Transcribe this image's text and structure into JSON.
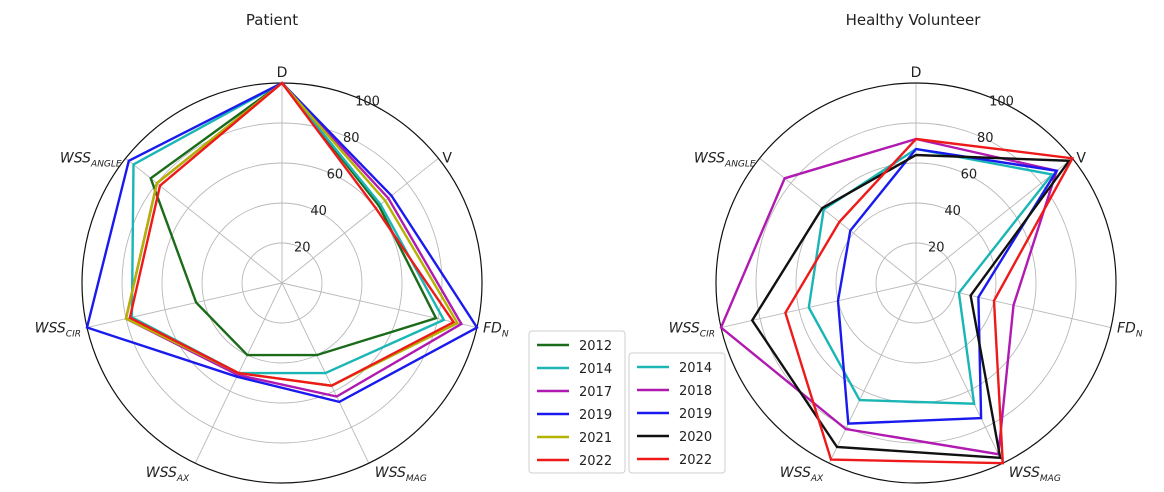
{
  "chart_data": [
    {
      "type": "radar",
      "title": "Patient",
      "axes": [
        "D",
        "V",
        "FD",
        "WSS",
        "WSS",
        "WSS",
        "WSS"
      ],
      "axis_subscripts": [
        "",
        "",
        "N",
        "MAG",
        "AX",
        "CIR",
        "ANGLE"
      ],
      "rlim": [
        0,
        100
      ],
      "r_ticks": [
        20,
        40,
        60,
        80,
        100
      ],
      "grid": true,
      "series": [
        {
          "name": "2012",
          "color": "#1a6b1a",
          "values": [
            100,
            62,
            79,
            40,
            40,
            44,
            84
          ]
        },
        {
          "name": "2014",
          "color": "#1ab5b5",
          "values": [
            100,
            63,
            83,
            50,
            50,
            77,
            95
          ]
        },
        {
          "name": "2017",
          "color": "#b01ab0",
          "values": [
            100,
            68,
            92,
            63,
            51,
            80,
            80
          ]
        },
        {
          "name": "2019",
          "color": "#1a1aee",
          "values": [
            100,
            70,
            100,
            66,
            52,
            100,
            98
          ]
        },
        {
          "name": "2021",
          "color": "#b3b300",
          "values": [
            100,
            66,
            90,
            57,
            50,
            80,
            80
          ]
        },
        {
          "name": "2022",
          "color": "#ee1a1a",
          "values": [
            100,
            60,
            88,
            57,
            50,
            78,
            78
          ]
        }
      ]
    },
    {
      "type": "radar",
      "title": "Healthy Volunteer",
      "axes": [
        "D",
        "V",
        "FD",
        "WSS",
        "WSS",
        "WSS",
        "WSS"
      ],
      "axis_subscripts": [
        "",
        "",
        "N",
        "MAG",
        "AX",
        "CIR",
        "ANGLE"
      ],
      "rlim": [
        0,
        100
      ],
      "r_ticks": [
        20,
        40,
        60,
        80,
        100
      ],
      "grid": true,
      "series": [
        {
          "name": "2014",
          "color": "#1ab5b5",
          "values": [
            67,
            87,
            22,
            67,
            65,
            55,
            59
          ]
        },
        {
          "name": "2018",
          "color": "#b01ab0",
          "values": [
            72,
            90,
            50,
            95,
            81,
            100,
            84
          ]
        },
        {
          "name": "2019",
          "color": "#1a1aee",
          "values": [
            67,
            90,
            32,
            75,
            78,
            40,
            42
          ]
        },
        {
          "name": "2020",
          "color": "#111111",
          "values": [
            64,
            98,
            28,
            97,
            91,
            84,
            60
          ]
        },
        {
          "name": "2022",
          "color": "#ee1a1a",
          "values": [
            72,
            100,
            40,
            100,
            98,
            67,
            49
          ]
        }
      ]
    }
  ],
  "legend": {
    "placement": "center-bottom",
    "columns": [
      [
        {
          "label": "2012",
          "color": "#1a6b1a"
        },
        {
          "label": "2014",
          "color": "#1ab5b5"
        },
        {
          "label": "2017",
          "color": "#b01ab0"
        },
        {
          "label": "2019",
          "color": "#1a1aee"
        },
        {
          "label": "2021",
          "color": "#b3b300"
        },
        {
          "label": "2022",
          "color": "#ee1a1a"
        }
      ],
      [
        {
          "label": "2014",
          "color": "#1ab5b5"
        },
        {
          "label": "2018",
          "color": "#b01ab0"
        },
        {
          "label": "2019",
          "color": "#1a1aee"
        },
        {
          "label": "2020",
          "color": "#111111"
        },
        {
          "label": "2022",
          "color": "#ee1a1a"
        }
      ]
    ]
  }
}
